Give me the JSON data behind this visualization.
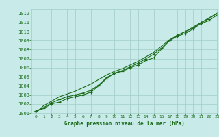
{
  "title": "Graphe pression niveau de la mer (hPa)",
  "x_values": [
    0,
    1,
    2,
    3,
    4,
    5,
    6,
    7,
    8,
    9,
    10,
    11,
    12,
    13,
    14,
    15,
    16,
    17,
    18,
    19,
    20,
    21,
    22,
    23
  ],
  "line1": [
    1001.2,
    1001.5,
    1002.0,
    1002.2,
    1002.6,
    1002.8,
    1003.0,
    1003.3,
    1004.0,
    1004.8,
    1005.4,
    1005.6,
    1006.0,
    1006.3,
    1006.8,
    1007.1,
    1008.1,
    1009.0,
    1009.5,
    1009.8,
    1010.3,
    1010.9,
    1011.2,
    1011.8
  ],
  "line2": [
    1001.2,
    1001.6,
    1002.1,
    1002.5,
    1002.8,
    1003.0,
    1003.2,
    1003.5,
    1004.1,
    1004.9,
    1005.4,
    1005.7,
    1006.1,
    1006.5,
    1007.0,
    1007.5,
    1008.2,
    1009.0,
    1009.6,
    1010.0,
    1010.4,
    1011.0,
    1011.4,
    1012.0
  ],
  "line3": [
    1001.0,
    1001.8,
    1002.3,
    1002.8,
    1003.1,
    1003.4,
    1003.8,
    1004.2,
    1004.7,
    1005.2,
    1005.6,
    1005.9,
    1006.3,
    1006.7,
    1007.2,
    1007.7,
    1008.4,
    1009.1,
    1009.6,
    1010.0,
    1010.5,
    1011.0,
    1011.5,
    1012.0
  ],
  "ylim": [
    1001,
    1012.5
  ],
  "xlim": [
    -0.5,
    23
  ],
  "yticks": [
    1001,
    1002,
    1003,
    1004,
    1005,
    1006,
    1007,
    1008,
    1009,
    1010,
    1011,
    1012
  ],
  "xticks": [
    0,
    1,
    2,
    3,
    4,
    5,
    6,
    7,
    8,
    9,
    10,
    11,
    12,
    13,
    14,
    15,
    16,
    17,
    18,
    19,
    20,
    21,
    22,
    23
  ],
  "line_color": "#1a6b1a",
  "bg_color": "#c8eae8",
  "grid_color": "#a0ccc8",
  "title_color": "#1a6b1a",
  "tick_color": "#1a6b1a",
  "marker": "+",
  "marker_size": 3,
  "line_width": 0.8
}
